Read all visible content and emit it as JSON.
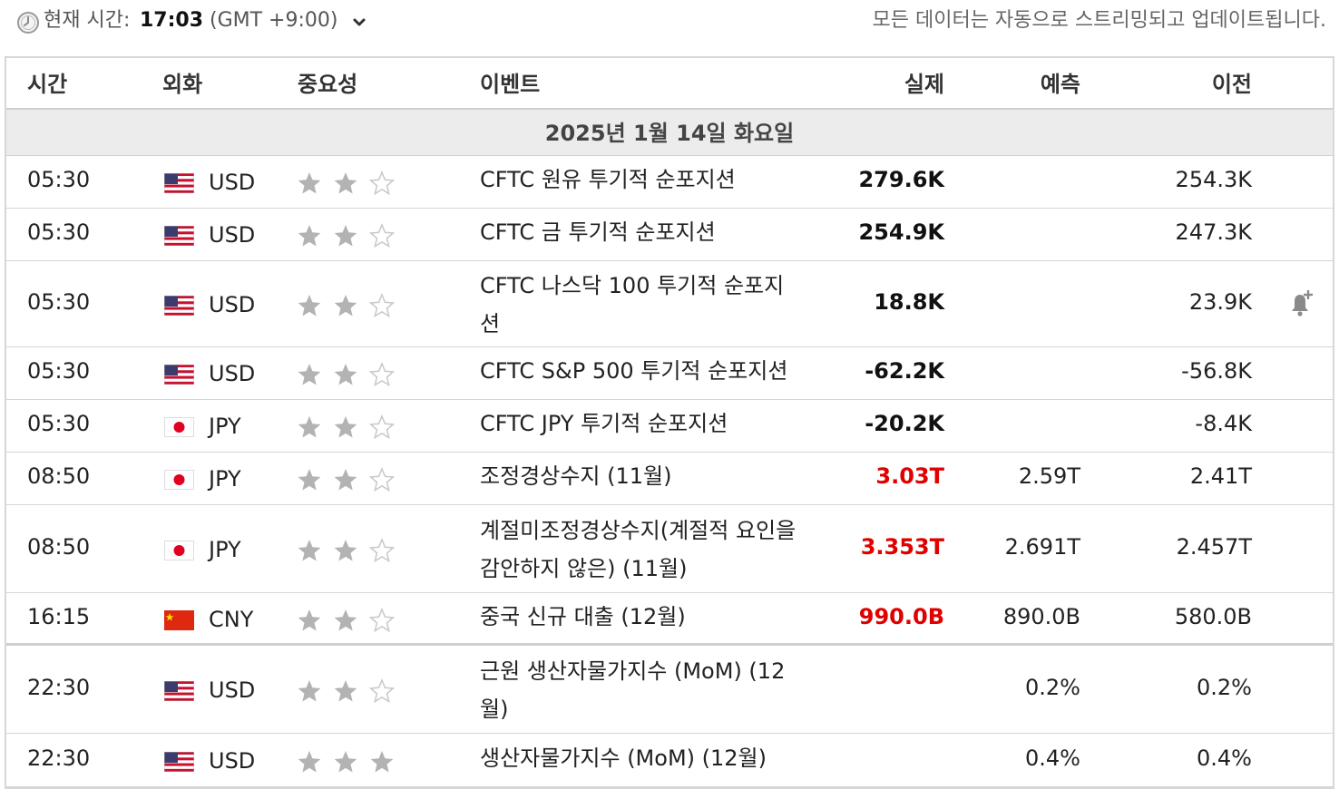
{
  "header": {
    "time_label": "현재 시간:",
    "time_value": "17:03",
    "timezone": "(GMT +9:00)",
    "stream_note": "모든 데이터는 자동으로 스트리밍되고 업데이트됩니다."
  },
  "columns": {
    "time": "시간",
    "currency": "외화",
    "importance": "중요성",
    "event": "이벤트",
    "actual": "실제",
    "forecast": "예측",
    "previous": "이전"
  },
  "day_header": "2025년 1월 14일 화요일",
  "colors": {
    "positive_actual": "#e00000",
    "star_filled": "#b3b3b3",
    "star_empty": "#c8c8c8"
  },
  "rows": [
    {
      "time": "05:30",
      "flag": "us-flag-icon",
      "currency": "USD",
      "importance": 2,
      "event": "CFTC 원유 투기적 순포지션",
      "actual": "279.6K",
      "actual_red": false,
      "forecast": "",
      "previous": "254.3K"
    },
    {
      "time": "05:30",
      "flag": "us-flag-icon",
      "currency": "USD",
      "importance": 2,
      "event": "CFTC 금 투기적 순포지션",
      "actual": "254.9K",
      "actual_red": false,
      "forecast": "",
      "previous": "247.3K"
    },
    {
      "time": "05:30",
      "flag": "us-flag-icon",
      "currency": "USD",
      "importance": 2,
      "event": "CFTC 나스닥 100 투기적 순포지션",
      "actual": "18.8K",
      "actual_red": false,
      "forecast": "",
      "previous": "23.9K",
      "alert": "bell-plus-icon"
    },
    {
      "time": "05:30",
      "flag": "us-flag-icon",
      "currency": "USD",
      "importance": 2,
      "event": "CFTC S&P 500 투기적 순포지션",
      "actual": "-62.2K",
      "actual_red": false,
      "forecast": "",
      "previous": "-56.8K"
    },
    {
      "time": "05:30",
      "flag": "jp-flag-icon",
      "currency": "JPY",
      "importance": 2,
      "event": "CFTC JPY 투기적 순포지션",
      "actual": "-20.2K",
      "actual_red": false,
      "forecast": "",
      "previous": "-8.4K"
    },
    {
      "time": "08:50",
      "flag": "jp-flag-icon",
      "currency": "JPY",
      "importance": 2,
      "event": "조정경상수지 (11월)",
      "actual": "3.03T",
      "actual_red": true,
      "forecast": "2.59T",
      "previous": "2.41T"
    },
    {
      "time": "08:50",
      "flag": "jp-flag-icon",
      "currency": "JPY",
      "importance": 2,
      "event": "계절미조정경상수지(계절적 요인을 감안하지 않은) (11월)",
      "actual": "3.353T",
      "actual_red": true,
      "forecast": "2.691T",
      "previous": "2.457T"
    },
    {
      "time": "16:15",
      "flag": "cn-flag-icon",
      "currency": "CNY",
      "importance": 2,
      "event": "중국 신규 대출 (12월)",
      "actual": "990.0B",
      "actual_red": true,
      "forecast": "890.0B",
      "previous": "580.0B"
    },
    {
      "time": "22:30",
      "flag": "us-flag-icon",
      "currency": "USD",
      "importance": 2,
      "event": "근원 생산자물가지수 (MoM) (12월)",
      "actual": "",
      "actual_red": false,
      "forecast": "0.2%",
      "previous": "0.2%"
    },
    {
      "time": "22:30",
      "flag": "us-flag-icon",
      "currency": "USD",
      "importance": 3,
      "event": "생산자물가지수 (MoM) (12월)",
      "actual": "",
      "actual_red": false,
      "forecast": "0.4%",
      "previous": "0.4%"
    }
  ]
}
